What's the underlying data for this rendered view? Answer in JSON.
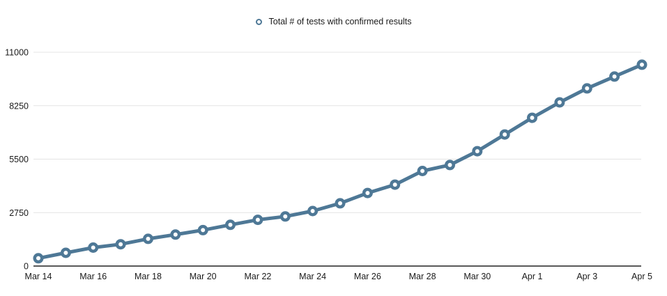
{
  "legend": {
    "label": "Total # of tests with confirmed results"
  },
  "chart_data": {
    "type": "line",
    "title": "Total # of tests with confirmed results",
    "x": [
      "Mar 14",
      "Mar 15",
      "Mar 16",
      "Mar 17",
      "Mar 18",
      "Mar 19",
      "Mar 20",
      "Mar 21",
      "Mar 22",
      "Mar 23",
      "Mar 24",
      "Mar 25",
      "Mar 26",
      "Mar 27",
      "Mar 28",
      "Mar 29",
      "Mar 30",
      "Mar 31",
      "Apr 1",
      "Apr 2",
      "Apr 3",
      "Apr 4",
      "Apr 5"
    ],
    "series": [
      {
        "name": "Total # of tests with confirmed results",
        "values": [
          400,
          680,
          950,
          1120,
          1400,
          1620,
          1850,
          2120,
          2380,
          2550,
          2830,
          3230,
          3760,
          4190,
          4890,
          5200,
          5910,
          6770,
          7630,
          8420,
          9140,
          9750,
          10360
        ]
      }
    ],
    "ylim": [
      0,
      11000
    ],
    "y_ticks": [
      0,
      2750,
      5500,
      8250,
      11000
    ],
    "y_tick_labels": [
      "0",
      "2750",
      "5500",
      "8250",
      "11000"
    ],
    "x_tick_labels": [
      "Mar 14",
      "Mar 16",
      "Mar 18",
      "Mar 20",
      "Mar 22",
      "Mar 24",
      "Mar 26",
      "Mar 28",
      "Mar 30",
      "Apr 1",
      "Apr 3",
      "Apr 5"
    ],
    "x_label_every": 2,
    "grid": "horizontal",
    "legend_position": "top-center",
    "marker": "open-circle",
    "colors": {
      "series": "#4e7896",
      "grid": "#e4e4e4",
      "axis": "#222222",
      "text": "#1a1a1a",
      "marker_fill": "#ffffff"
    }
  }
}
